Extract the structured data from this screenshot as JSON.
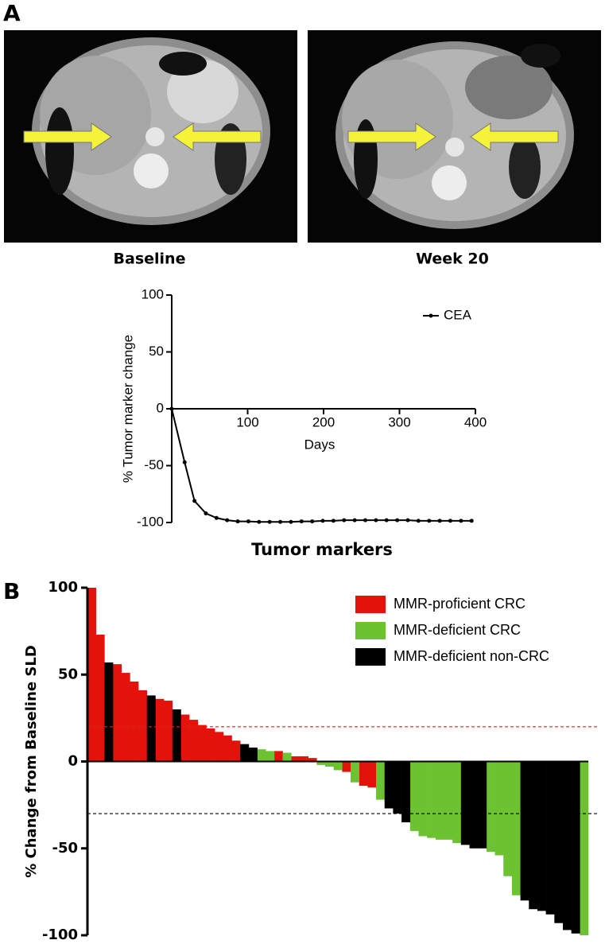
{
  "panel_labels": [
    "A",
    "B"
  ],
  "images": [
    {
      "caption": "Baseline"
    },
    {
      "caption": "Week 20"
    }
  ],
  "chart_data": [
    {
      "type": "line",
      "title": "Tumor markers",
      "x_label": "Days",
      "y_label": "% Tumor marker change",
      "xlim": [
        0,
        400
      ],
      "xticks": [
        100,
        200,
        300,
        400
      ],
      "ylim": [
        -100,
        100
      ],
      "yticks": [
        -100,
        -50,
        0,
        50,
        100
      ],
      "series": [
        {
          "name": "CEA",
          "color": "#000000",
          "x": [
            0,
            17,
            30,
            45,
            59,
            73,
            87,
            101,
            115,
            129,
            143,
            157,
            171,
            185,
            199,
            213,
            227,
            241,
            255,
            269,
            283,
            297,
            311,
            325,
            339,
            353,
            367,
            381,
            395
          ],
          "values": [
            0,
            -47,
            -81,
            -92,
            -96,
            -98,
            -99,
            -99,
            -99.5,
            -99.5,
            -99.5,
            -99.5,
            -99,
            -99,
            -98.5,
            -98.5,
            -98,
            -98,
            -98,
            -98,
            -98,
            -98,
            -98,
            -98.5,
            -98.5,
            -98.5,
            -98.5,
            -98.5,
            -98.5
          ]
        }
      ]
    },
    {
      "type": "bar",
      "y_label": "% Change from Baseline SLD",
      "ylim": [
        -100,
        100
      ],
      "yticks": [
        -100,
        -50,
        0,
        50,
        100
      ],
      "reference_lines": [
        {
          "value": 20,
          "color": "#e02020"
        },
        {
          "value": -30,
          "color": "#000000"
        }
      ],
      "series": [
        {
          "name": "MMR-proficient CRC",
          "color": "#e3120b",
          "values": [
            100,
            73,
            null,
            56,
            51,
            46,
            41,
            null,
            36,
            35,
            null,
            27,
            24,
            21,
            19,
            17,
            15,
            12,
            null,
            null,
            null,
            null,
            6,
            null,
            3,
            3,
            2,
            null,
            null,
            null,
            -6,
            null,
            -14,
            -15,
            null,
            null,
            null,
            null,
            null,
            null,
            null,
            null,
            null,
            null,
            null,
            null,
            null,
            null,
            null,
            null,
            null,
            null,
            null,
            null,
            null,
            null,
            null,
            null,
            null
          ]
        },
        {
          "name": "MMR-deficient CRC",
          "color": "#6cc230",
          "values": [
            null,
            null,
            null,
            null,
            null,
            null,
            null,
            null,
            null,
            null,
            null,
            null,
            null,
            null,
            null,
            null,
            null,
            null,
            null,
            null,
            7,
            6,
            null,
            5,
            null,
            null,
            null,
            -2,
            -3,
            -5,
            null,
            -12,
            null,
            null,
            -22,
            null,
            null,
            null,
            -40,
            -43,
            -44,
            -45,
            -45,
            -47,
            null,
            null,
            null,
            -52,
            -54,
            -66,
            -77,
            null,
            null,
            null,
            null,
            null,
            null,
            null,
            -100
          ]
        },
        {
          "name": "MMR-deficient non-CRC",
          "color": "#000000",
          "values": [
            null,
            null,
            57,
            null,
            null,
            null,
            null,
            38,
            null,
            null,
            30,
            null,
            null,
            null,
            null,
            null,
            null,
            null,
            10,
            8,
            null,
            null,
            null,
            null,
            null,
            null,
            null,
            null,
            null,
            null,
            null,
            null,
            null,
            null,
            null,
            -27,
            -30,
            -35,
            null,
            null,
            null,
            null,
            null,
            null,
            -48,
            -50,
            -50,
            null,
            null,
            null,
            null,
            -80,
            -85,
            -86,
            -88,
            -93,
            -97,
            -99,
            null
          ]
        }
      ]
    }
  ]
}
